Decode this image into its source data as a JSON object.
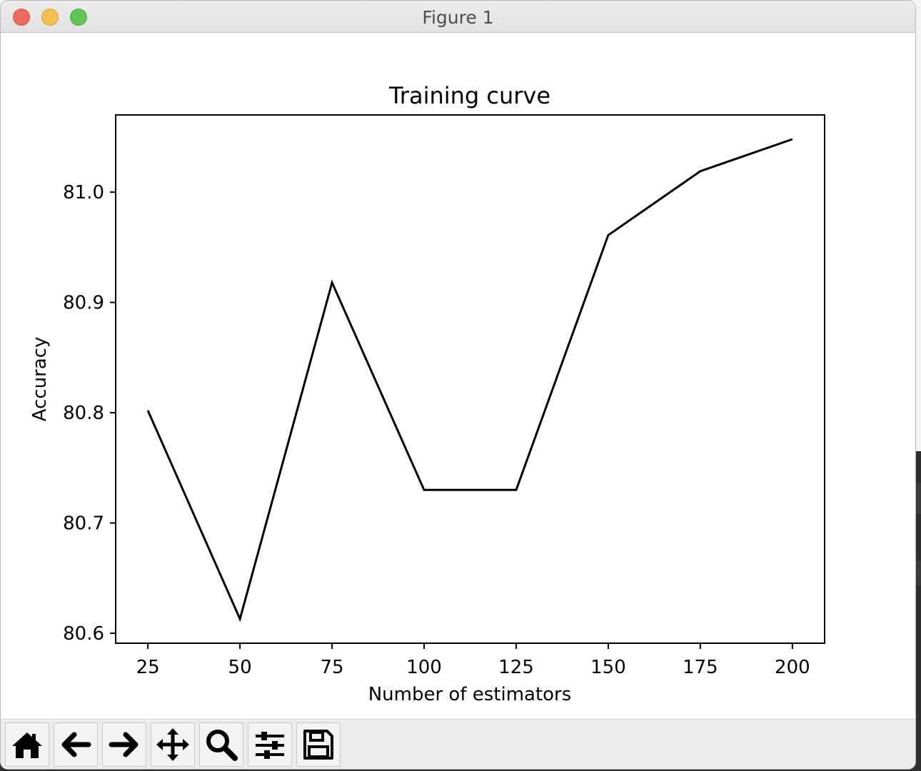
{
  "window": {
    "title": "Figure 1"
  },
  "toolbar": {
    "buttons": [
      {
        "name": "home-button",
        "icon": "home-icon"
      },
      {
        "name": "back-button",
        "icon": "arrow-left-icon"
      },
      {
        "name": "forward-button",
        "icon": "arrow-right-icon"
      },
      {
        "name": "pan-button",
        "icon": "move-icon"
      },
      {
        "name": "zoom-button",
        "icon": "magnifier-icon"
      },
      {
        "name": "configure-subplots-button",
        "icon": "sliders-icon"
      },
      {
        "name": "save-button",
        "icon": "floppy-disk-icon"
      }
    ]
  },
  "chart_data": {
    "type": "line",
    "title": "Training curve",
    "xlabel": "Number of estimators",
    "ylabel": "Accuracy",
    "x": [
      25,
      50,
      75,
      100,
      125,
      150,
      175,
      200
    ],
    "series": [
      {
        "color": "#000000",
        "values": [
          80.802,
          80.613,
          80.918,
          80.73,
          80.73,
          80.961,
          81.019,
          81.048
        ]
      }
    ],
    "xticks": [
      "25",
      "50",
      "75",
      "100",
      "125",
      "150",
      "175",
      "200"
    ],
    "yticks": [
      "80.6",
      "80.7",
      "80.8",
      "80.9",
      "81.0"
    ],
    "xlim": [
      16.25,
      208.75
    ],
    "ylim": [
      80.591,
      81.07
    ],
    "grid": false
  }
}
